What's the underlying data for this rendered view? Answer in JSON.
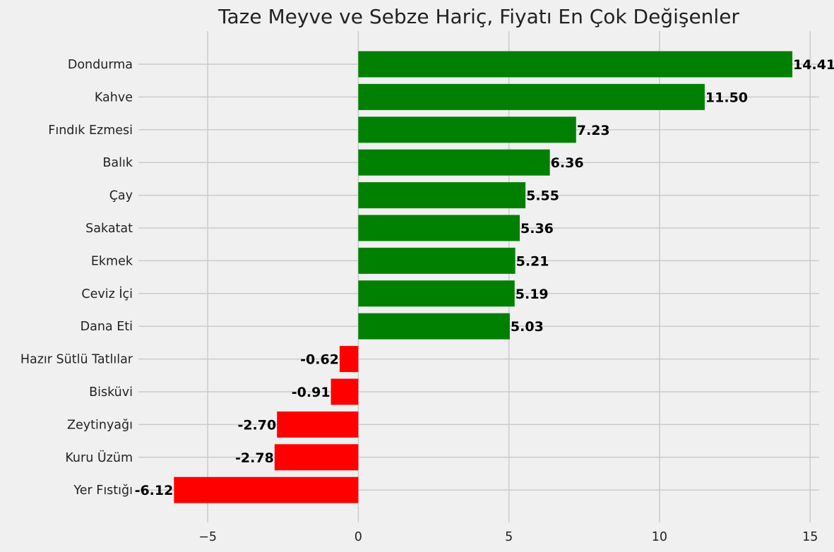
{
  "chart_data": {
    "type": "bar",
    "orientation": "horizontal",
    "title": "Taze Meyve ve Sebze Hariç, Fiyatı En Çok Değişenler",
    "xlabel": "",
    "ylabel": "",
    "xlim": [
      -7.3,
      15.3
    ],
    "x_ticks": [
      -5,
      0,
      5,
      10,
      15
    ],
    "x_tick_labels": [
      "−5",
      "0",
      "5",
      "10",
      "15"
    ],
    "grid": true,
    "positive_color": "#008000",
    "negative_color": "#ff0000",
    "background_color": "#f0f0f0",
    "grid_color": "#cbcbcb",
    "categories": [
      "Dondurma",
      "Kahve",
      "Fındık Ezmesi",
      "Balık",
      "Çay",
      "Sakatat",
      "Ekmek",
      "Ceviz İçi",
      "Dana Eti",
      "Hazır Sütlü Tatlılar",
      "Bisküvi",
      "Zeytinyağı",
      "Kuru Üzüm",
      "Yer Fıstığı"
    ],
    "values": [
      14.41,
      11.5,
      7.23,
      6.36,
      5.55,
      5.36,
      5.21,
      5.19,
      5.03,
      -0.62,
      -0.91,
      -2.7,
      -2.78,
      -6.12
    ],
    "value_labels": [
      "14.41",
      "11.50",
      "7.23",
      "6.36",
      "5.55",
      "5.36",
      "5.21",
      "5.19",
      "5.03",
      "-0.62",
      "-0.91",
      "-2.70",
      "-2.78",
      "-6.12"
    ]
  }
}
